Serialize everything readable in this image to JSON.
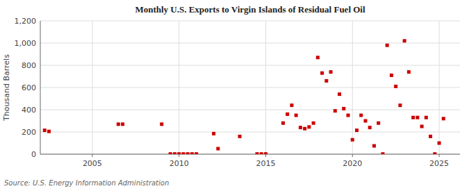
{
  "chart_data": {
    "type": "scatter",
    "title": "Monthly U.S. Exports to Virgin Islands of Residual Fuel Oil",
    "y_label": "Thousand Barrels",
    "annotation": "Source: U.S. Energy Information Administration",
    "color": "#cc0000",
    "marker": "square",
    "grid": true,
    "xlim": [
      2002.0,
      2026.2
    ],
    "xticks": [
      2005,
      2010,
      2015,
      2020,
      2025
    ],
    "ylim": [
      0,
      1200
    ],
    "yticks": [
      0,
      200,
      400,
      600,
      800,
      {
        "value": 1000,
        "label": "1,000"
      },
      {
        "value": 1200,
        "label": "1,200"
      }
    ],
    "x": [
      2002.25,
      2002.5,
      2006.5,
      2006.75,
      2009.0,
      2009.5,
      2009.75,
      2010.0,
      2010.25,
      2010.5,
      2010.75,
      2011.0,
      2012.0,
      2012.25,
      2013.5,
      2014.5,
      2014.75,
      2015.0,
      2016.0,
      2016.25,
      2016.5,
      2016.75,
      2017.0,
      2017.25,
      2017.5,
      2017.75,
      2018.0,
      2018.25,
      2018.5,
      2018.75,
      2019.0,
      2019.25,
      2019.5,
      2019.75,
      2020.0,
      2020.25,
      2020.5,
      2020.75,
      2021.0,
      2021.25,
      2021.5,
      2021.75,
      2022.0,
      2022.25,
      2022.5,
      2022.75,
      2023.0,
      2023.25,
      2023.5,
      2023.75,
      2024.0,
      2024.25,
      2024.5,
      2024.75,
      2025.0,
      2025.25
    ],
    "values": [
      215,
      205,
      270,
      270,
      270,
      2,
      2,
      2,
      2,
      2,
      2,
      2,
      185,
      50,
      160,
      2,
      2,
      2,
      280,
      360,
      440,
      350,
      240,
      230,
      245,
      280,
      870,
      730,
      660,
      740,
      390,
      540,
      410,
      350,
      130,
      215,
      350,
      300,
      240,
      75,
      280,
      2,
      980,
      710,
      610,
      440,
      1020,
      740,
      330,
      330,
      250,
      330,
      160,
      2,
      100,
      320
    ]
  }
}
